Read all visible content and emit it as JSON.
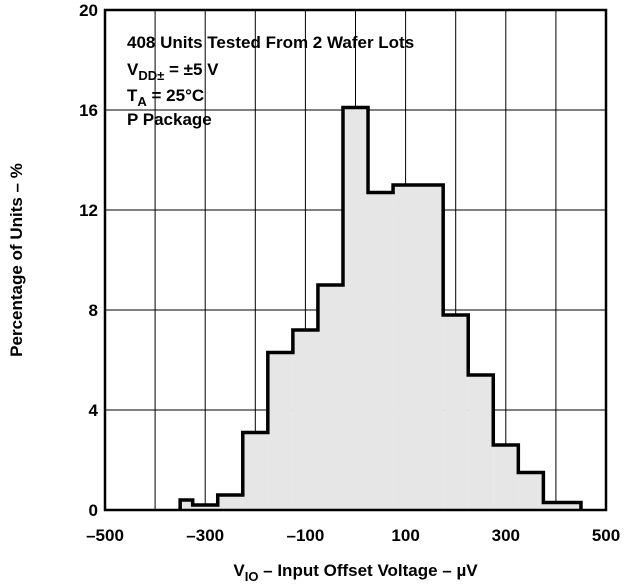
{
  "chart_data": {
    "type": "bar",
    "title": "",
    "xlabel": {
      "main": "V",
      "sub": "IO",
      "rest": " – Input Offset Voltage – µV"
    },
    "ylabel": "Percentage of Units – %",
    "xlim": [
      -500,
      500
    ],
    "ylim": [
      0,
      20
    ],
    "x_ticks": [
      -500,
      -300,
      -100,
      100,
      300,
      500
    ],
    "x_tick_labels": [
      "–500",
      "–300",
      "–100",
      "100",
      "300",
      "500"
    ],
    "x_gridlines": [
      -400,
      -300,
      -200,
      -100,
      0,
      100,
      200,
      300,
      400
    ],
    "y_ticks": [
      0,
      4,
      8,
      12,
      16,
      20
    ],
    "y_tick_labels": [
      "0",
      "4",
      "8",
      "12",
      "16",
      "20"
    ],
    "grid": true,
    "bin_width": 50,
    "bins": [
      {
        "x0": -350,
        "x1": -325,
        "value": 0.4
      },
      {
        "x0": -325,
        "x1": -275,
        "value": 0.2
      },
      {
        "x0": -275,
        "x1": -225,
        "value": 0.6
      },
      {
        "x0": -225,
        "x1": -175,
        "value": 3.1
      },
      {
        "x0": -175,
        "x1": -125,
        "value": 6.3
      },
      {
        "x0": -125,
        "x1": -75,
        "value": 7.2
      },
      {
        "x0": -75,
        "x1": -25,
        "value": 9.0
      },
      {
        "x0": -25,
        "x1": 25,
        "value": 16.1
      },
      {
        "x0": 25,
        "x1": 75,
        "value": 12.7
      },
      {
        "x0": 75,
        "x1": 175,
        "value": 13.0
      },
      {
        "x0": 175,
        "x1": 225,
        "value": 7.8
      },
      {
        "x0": 225,
        "x1": 275,
        "value": 5.4
      },
      {
        "x0": 275,
        "x1": 325,
        "value": 2.6
      },
      {
        "x0": 325,
        "x1": 375,
        "value": 1.5
      },
      {
        "x0": 375,
        "x1": 450,
        "value": 0.3
      }
    ],
    "annotations": [
      {
        "main": "408 Units Tested From 2 Wafer Lots",
        "sub": "",
        "rest": ""
      },
      {
        "main": "V",
        "sub": "DD±",
        "rest": " = ±5 V"
      },
      {
        "main": "T",
        "sub": "A",
        "rest": " = 25°C"
      },
      {
        "main": "P Package",
        "sub": "",
        "rest": ""
      }
    ],
    "colors": {
      "fill": "#e6e6e6",
      "outline": "#000000",
      "grid": "#000000"
    }
  }
}
